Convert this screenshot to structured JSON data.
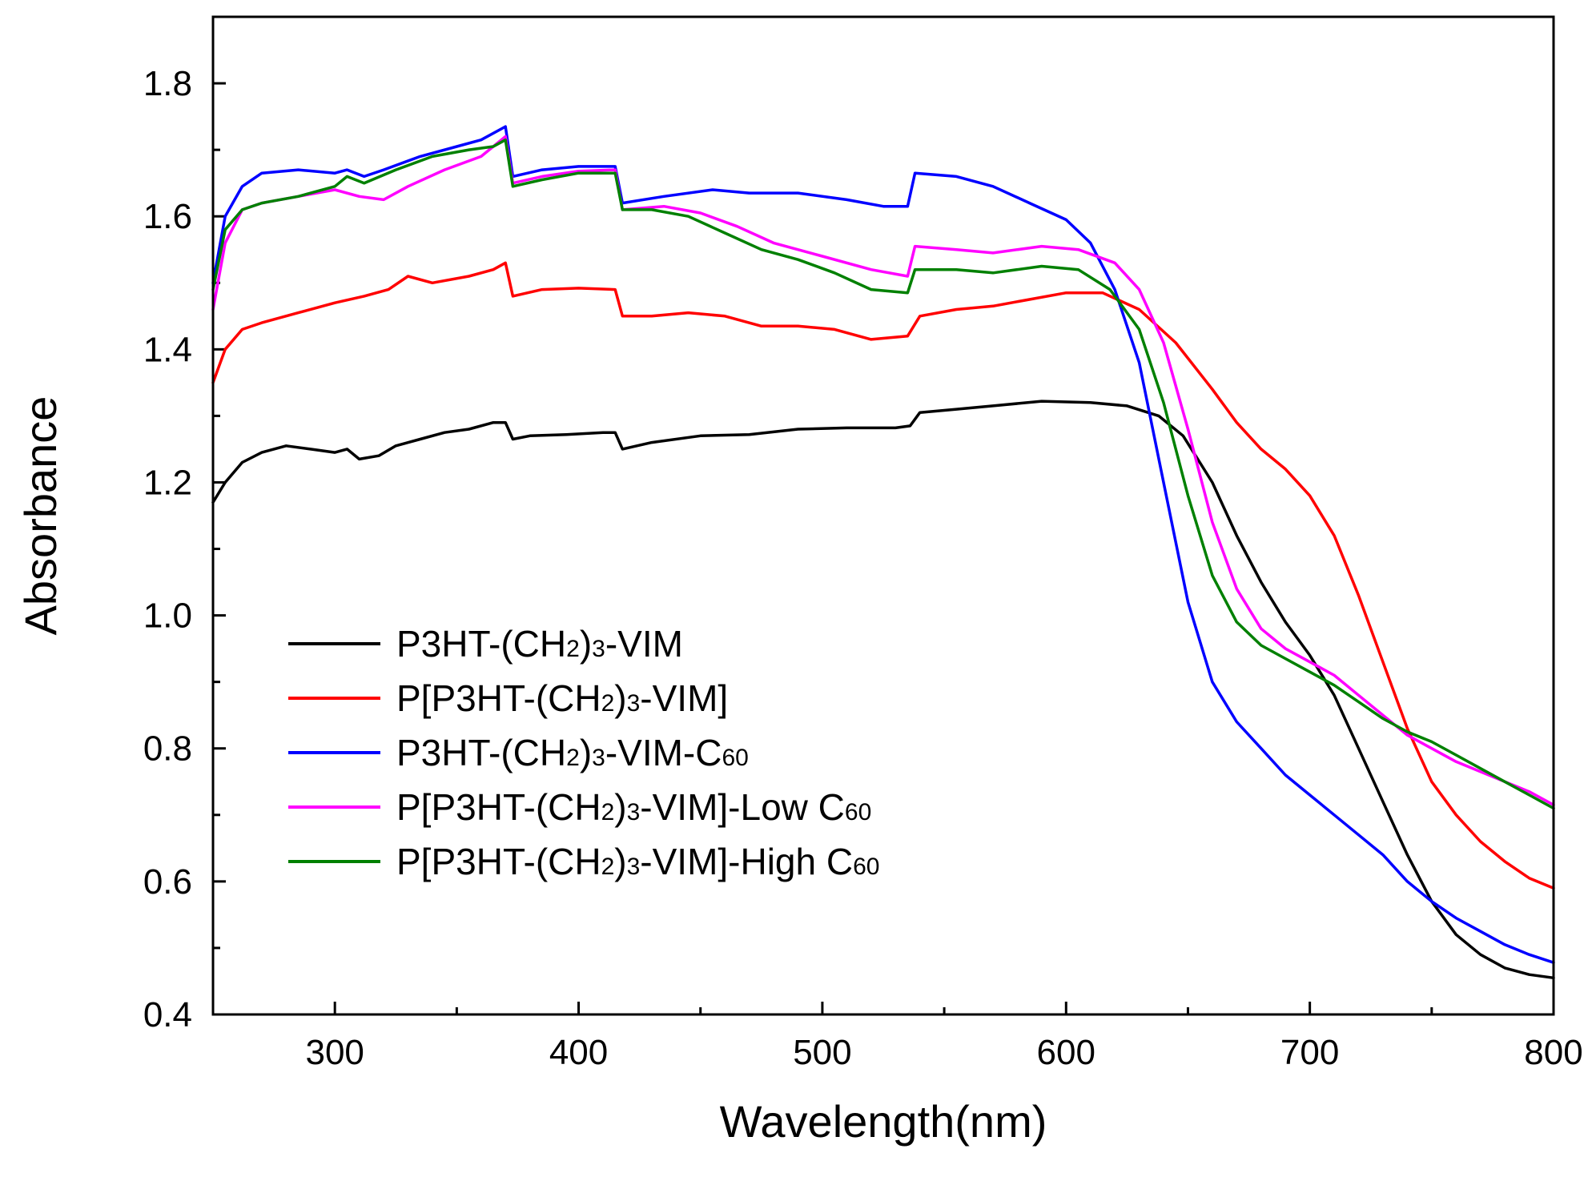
{
  "chart_data": {
    "type": "line",
    "title": "",
    "xlabel": "Wavelength(nm)",
    "ylabel": "Absorbance",
    "xlim": [
      250,
      800
    ],
    "ylim": [
      0.4,
      1.9
    ],
    "xticks": [
      300,
      400,
      500,
      600,
      700,
      800
    ],
    "yticks": [
      0.4,
      0.6,
      0.8,
      1.0,
      1.2,
      1.4,
      1.6,
      1.8
    ],
    "xtick_labels": [
      "300",
      "400",
      "500",
      "600",
      "700",
      "800"
    ],
    "ytick_labels": [
      "0.4",
      "0.6",
      "0.8",
      "1.0",
      "1.2",
      "1.4",
      "1.6",
      "1.8"
    ],
    "grid": false,
    "legend_position": "lower-left",
    "series": [
      {
        "name": "P3HT-(CH2)3-VIM",
        "label_parts": [
          "P3HT-(CH",
          "2",
          ")",
          "3",
          "-VIM"
        ],
        "color": "#000000",
        "points": [
          [
            250,
            1.17
          ],
          [
            255,
            1.2
          ],
          [
            262,
            1.23
          ],
          [
            270,
            1.245
          ],
          [
            280,
            1.255
          ],
          [
            290,
            1.25
          ],
          [
            300,
            1.245
          ],
          [
            305,
            1.25
          ],
          [
            310,
            1.235
          ],
          [
            318,
            1.24
          ],
          [
            325,
            1.255
          ],
          [
            335,
            1.265
          ],
          [
            345,
            1.275
          ],
          [
            355,
            1.28
          ],
          [
            365,
            1.29
          ],
          [
            370,
            1.29
          ],
          [
            373,
            1.265
          ],
          [
            380,
            1.27
          ],
          [
            395,
            1.272
          ],
          [
            410,
            1.275
          ],
          [
            415,
            1.275
          ],
          [
            418,
            1.25
          ],
          [
            430,
            1.26
          ],
          [
            450,
            1.27
          ],
          [
            470,
            1.272
          ],
          [
            490,
            1.28
          ],
          [
            510,
            1.282
          ],
          [
            530,
            1.282
          ],
          [
            536,
            1.285
          ],
          [
            540,
            1.305
          ],
          [
            555,
            1.31
          ],
          [
            570,
            1.315
          ],
          [
            590,
            1.322
          ],
          [
            610,
            1.32
          ],
          [
            625,
            1.315
          ],
          [
            638,
            1.3
          ],
          [
            648,
            1.27
          ],
          [
            660,
            1.2
          ],
          [
            670,
            1.12
          ],
          [
            680,
            1.05
          ],
          [
            690,
            0.99
          ],
          [
            700,
            0.94
          ],
          [
            710,
            0.88
          ],
          [
            720,
            0.8
          ],
          [
            730,
            0.72
          ],
          [
            740,
            0.64
          ],
          [
            750,
            0.57
          ],
          [
            760,
            0.52
          ],
          [
            770,
            0.49
          ],
          [
            780,
            0.47
          ],
          [
            790,
            0.46
          ],
          [
            800,
            0.455
          ]
        ]
      },
      {
        "name": "P[P3HT-(CH2)3-VIM]",
        "label_parts": [
          "P[P3HT-(CH",
          "2",
          ")",
          "3",
          "-VIM]"
        ],
        "color": "#ff0000",
        "points": [
          [
            250,
            1.35
          ],
          [
            255,
            1.4
          ],
          [
            262,
            1.43
          ],
          [
            270,
            1.44
          ],
          [
            285,
            1.455
          ],
          [
            300,
            1.47
          ],
          [
            312,
            1.48
          ],
          [
            322,
            1.49
          ],
          [
            330,
            1.51
          ],
          [
            340,
            1.5
          ],
          [
            355,
            1.51
          ],
          [
            365,
            1.52
          ],
          [
            370,
            1.53
          ],
          [
            373,
            1.48
          ],
          [
            385,
            1.49
          ],
          [
            400,
            1.492
          ],
          [
            415,
            1.49
          ],
          [
            418,
            1.45
          ],
          [
            430,
            1.45
          ],
          [
            445,
            1.455
          ],
          [
            460,
            1.45
          ],
          [
            475,
            1.435
          ],
          [
            490,
            1.435
          ],
          [
            505,
            1.43
          ],
          [
            520,
            1.415
          ],
          [
            535,
            1.42
          ],
          [
            540,
            1.45
          ],
          [
            555,
            1.46
          ],
          [
            570,
            1.465
          ],
          [
            585,
            1.475
          ],
          [
            600,
            1.485
          ],
          [
            615,
            1.485
          ],
          [
            630,
            1.46
          ],
          [
            645,
            1.41
          ],
          [
            660,
            1.34
          ],
          [
            670,
            1.29
          ],
          [
            680,
            1.25
          ],
          [
            690,
            1.22
          ],
          [
            700,
            1.18
          ],
          [
            710,
            1.12
          ],
          [
            720,
            1.03
          ],
          [
            730,
            0.93
          ],
          [
            740,
            0.83
          ],
          [
            750,
            0.75
          ],
          [
            760,
            0.7
          ],
          [
            770,
            0.66
          ],
          [
            780,
            0.63
          ],
          [
            790,
            0.605
          ],
          [
            800,
            0.59
          ]
        ]
      },
      {
        "name": "P3HT-(CH2)3-VIM-C60",
        "label_parts": [
          "P3HT-(CH",
          "2",
          ")",
          "3",
          "-VIM-C",
          "60",
          ""
        ],
        "color": "#0000ff",
        "points": [
          [
            250,
            1.5
          ],
          [
            255,
            1.6
          ],
          [
            262,
            1.645
          ],
          [
            270,
            1.665
          ],
          [
            285,
            1.67
          ],
          [
            300,
            1.665
          ],
          [
            305,
            1.67
          ],
          [
            312,
            1.66
          ],
          [
            320,
            1.67
          ],
          [
            335,
            1.69
          ],
          [
            350,
            1.705
          ],
          [
            360,
            1.715
          ],
          [
            370,
            1.735
          ],
          [
            373,
            1.66
          ],
          [
            385,
            1.67
          ],
          [
            400,
            1.675
          ],
          [
            415,
            1.675
          ],
          [
            418,
            1.62
          ],
          [
            435,
            1.63
          ],
          [
            455,
            1.64
          ],
          [
            470,
            1.635
          ],
          [
            490,
            1.635
          ],
          [
            510,
            1.625
          ],
          [
            525,
            1.615
          ],
          [
            535,
            1.615
          ],
          [
            538,
            1.665
          ],
          [
            555,
            1.66
          ],
          [
            570,
            1.645
          ],
          [
            585,
            1.62
          ],
          [
            600,
            1.595
          ],
          [
            610,
            1.56
          ],
          [
            620,
            1.49
          ],
          [
            630,
            1.38
          ],
          [
            640,
            1.2
          ],
          [
            650,
            1.02
          ],
          [
            660,
            0.9
          ],
          [
            670,
            0.84
          ],
          [
            680,
            0.8
          ],
          [
            690,
            0.76
          ],
          [
            700,
            0.73
          ],
          [
            710,
            0.7
          ],
          [
            720,
            0.67
          ],
          [
            730,
            0.64
          ],
          [
            740,
            0.6
          ],
          [
            750,
            0.57
          ],
          [
            760,
            0.545
          ],
          [
            770,
            0.525
          ],
          [
            780,
            0.505
          ],
          [
            790,
            0.49
          ],
          [
            800,
            0.478
          ]
        ]
      },
      {
        "name": "P[P3HT-(CH2)3-VIM]-Low C60",
        "label_parts": [
          "P[P3HT-(CH",
          "2",
          ")",
          "3",
          "-VIM]-Low C",
          "60",
          ""
        ],
        "color": "#ff00ff",
        "points": [
          [
            250,
            1.46
          ],
          [
            255,
            1.56
          ],
          [
            262,
            1.61
          ],
          [
            270,
            1.62
          ],
          [
            285,
            1.63
          ],
          [
            300,
            1.64
          ],
          [
            310,
            1.63
          ],
          [
            320,
            1.625
          ],
          [
            330,
            1.645
          ],
          [
            345,
            1.67
          ],
          [
            360,
            1.69
          ],
          [
            370,
            1.72
          ],
          [
            373,
            1.65
          ],
          [
            385,
            1.66
          ],
          [
            400,
            1.668
          ],
          [
            415,
            1.67
          ],
          [
            418,
            1.61
          ],
          [
            435,
            1.615
          ],
          [
            450,
            1.605
          ],
          [
            465,
            1.585
          ],
          [
            480,
            1.56
          ],
          [
            500,
            1.54
          ],
          [
            520,
            1.52
          ],
          [
            535,
            1.51
          ],
          [
            538,
            1.555
          ],
          [
            555,
            1.55
          ],
          [
            570,
            1.545
          ],
          [
            590,
            1.555
          ],
          [
            605,
            1.55
          ],
          [
            620,
            1.53
          ],
          [
            630,
            1.49
          ],
          [
            640,
            1.41
          ],
          [
            650,
            1.28
          ],
          [
            660,
            1.14
          ],
          [
            670,
            1.04
          ],
          [
            680,
            0.98
          ],
          [
            690,
            0.95
          ],
          [
            700,
            0.93
          ],
          [
            710,
            0.91
          ],
          [
            720,
            0.88
          ],
          [
            730,
            0.85
          ],
          [
            740,
            0.82
          ],
          [
            750,
            0.8
          ],
          [
            760,
            0.78
          ],
          [
            770,
            0.765
          ],
          [
            780,
            0.75
          ],
          [
            790,
            0.735
          ],
          [
            800,
            0.715
          ]
        ]
      },
      {
        "name": "P[P3HT-(CH2)3-VIM]-High C60",
        "label_parts": [
          "P[P3HT-(CH",
          "2",
          ")",
          "3",
          "-VIM]-High C",
          "60",
          ""
        ],
        "color": "#008000",
        "points": [
          [
            250,
            1.49
          ],
          [
            255,
            1.58
          ],
          [
            262,
            1.61
          ],
          [
            270,
            1.62
          ],
          [
            285,
            1.63
          ],
          [
            300,
            1.645
          ],
          [
            305,
            1.66
          ],
          [
            312,
            1.65
          ],
          [
            325,
            1.67
          ],
          [
            340,
            1.69
          ],
          [
            355,
            1.7
          ],
          [
            365,
            1.705
          ],
          [
            370,
            1.715
          ],
          [
            373,
            1.645
          ],
          [
            385,
            1.655
          ],
          [
            400,
            1.665
          ],
          [
            415,
            1.665
          ],
          [
            418,
            1.61
          ],
          [
            430,
            1.61
          ],
          [
            445,
            1.6
          ],
          [
            460,
            1.575
          ],
          [
            475,
            1.55
          ],
          [
            490,
            1.535
          ],
          [
            505,
            1.515
          ],
          [
            520,
            1.49
          ],
          [
            535,
            1.485
          ],
          [
            538,
            1.52
          ],
          [
            555,
            1.52
          ],
          [
            570,
            1.515
          ],
          [
            590,
            1.525
          ],
          [
            605,
            1.52
          ],
          [
            618,
            1.49
          ],
          [
            630,
            1.43
          ],
          [
            640,
            1.32
          ],
          [
            650,
            1.18
          ],
          [
            660,
            1.06
          ],
          [
            670,
            0.99
          ],
          [
            680,
            0.955
          ],
          [
            690,
            0.935
          ],
          [
            700,
            0.915
          ],
          [
            710,
            0.895
          ],
          [
            720,
            0.87
          ],
          [
            730,
            0.845
          ],
          [
            740,
            0.825
          ],
          [
            750,
            0.81
          ],
          [
            760,
            0.79
          ],
          [
            770,
            0.77
          ],
          [
            780,
            0.75
          ],
          [
            790,
            0.73
          ],
          [
            800,
            0.71
          ]
        ]
      }
    ]
  }
}
